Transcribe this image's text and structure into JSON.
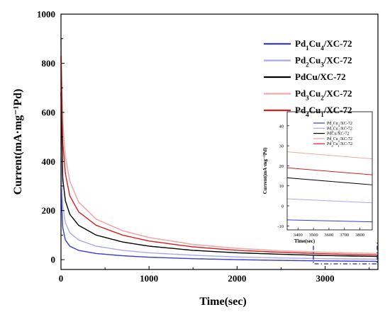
{
  "chart_data": {
    "type": "line",
    "xlabel": "Time(sec)",
    "ylabel": "Current(mA·mg⁻¹Pd)",
    "xlim": [
      0,
      3600
    ],
    "ylim": [
      -40,
      1000
    ],
    "xticks": [
      0,
      1000,
      2000,
      3000
    ],
    "yticks": [
      0,
      200,
      400,
      600,
      800,
      1000
    ],
    "legend": "top-right",
    "grid": false,
    "series": [
      {
        "name": "Pd1Cu4/XC-72",
        "sub": [
          "Pd",
          "1",
          "Cu",
          "4",
          "/XC-72"
        ],
        "color": "#3a3ae0",
        "x": [
          0,
          20,
          50,
          100,
          200,
          400,
          700,
          1000,
          1500,
          2000,
          2500,
          3000,
          3300,
          3600
        ],
        "y": [
          290,
          130,
          80,
          55,
          38,
          25,
          16,
          10,
          4,
          0,
          -3,
          -5,
          -6,
          -7
        ]
      },
      {
        "name": "Pd2Cu3/XC-72",
        "sub": [
          "Pd",
          "2",
          "Cu",
          "3",
          "/XC-72"
        ],
        "color": "#a9a9f2",
        "x": [
          0,
          20,
          50,
          100,
          200,
          400,
          700,
          1000,
          1500,
          2000,
          2500,
          3000,
          3300,
          3600
        ],
        "y": [
          420,
          220,
          150,
          110,
          80,
          55,
          38,
          28,
          18,
          11,
          7,
          4,
          3,
          2
        ]
      },
      {
        "name": "PdCu/XC-72",
        "sub": [
          "PdCu/XC-72",
          "",
          "",
          "",
          ""
        ],
        "color": "#000000",
        "x": [
          0,
          20,
          50,
          100,
          200,
          400,
          700,
          1000,
          1500,
          2000,
          2500,
          3000,
          3300,
          3600
        ],
        "y": [
          680,
          330,
          240,
          185,
          140,
          100,
          72,
          55,
          38,
          28,
          22,
          17,
          15,
          13
        ]
      },
      {
        "name": "Pd3Cu2/XC-72",
        "sub": [
          "Pd",
          "3",
          "Cu",
          "2",
          "/XC-72"
        ],
        "color": "#f0a8a8",
        "x": [
          0,
          20,
          50,
          100,
          200,
          400,
          700,
          1000,
          1500,
          2000,
          2500,
          3000,
          3300,
          3600
        ],
        "y": [
          900,
          560,
          420,
          320,
          235,
          165,
          118,
          90,
          62,
          46,
          36,
          30,
          27,
          25
        ]
      },
      {
        "name": "Pd4Cu1/XC-72",
        "sub": [
          "Pd",
          "4",
          "Cu",
          "1",
          "/XC-72"
        ],
        "color": "#d42020",
        "x": [
          0,
          20,
          50,
          100,
          200,
          400,
          700,
          1000,
          1500,
          2000,
          2500,
          3000,
          3300,
          3600
        ],
        "y": [
          830,
          480,
          350,
          260,
          195,
          140,
          100,
          76,
          52,
          38,
          30,
          24,
          21,
          19
        ]
      }
    ],
    "inset": {
      "xlabel": "Time(sec)",
      "ylabel": "Current(mA·mg⁻¹Pd)",
      "xlim": [
        3330,
        3880
      ],
      "ylim": [
        -12,
        47
      ],
      "xticks": [
        3400,
        3500,
        3600,
        3700,
        3800
      ],
      "yticks": [
        -10,
        0,
        10,
        20,
        30,
        40
      ],
      "legend": "top-right",
      "series": [
        {
          "name": "Pd1Cu4/XC-72",
          "x": [
            3330,
            3880
          ],
          "y": [
            -7,
            -8
          ]
        },
        {
          "name": "Pd2Cu3/XC-72",
          "x": [
            3330,
            3880
          ],
          "y": [
            3.5,
            1.5
          ]
        },
        {
          "name": "PdCu/XC-72",
          "x": [
            3330,
            3880
          ],
          "y": [
            14,
            10.5
          ]
        },
        {
          "name": "Pd3Cu2/XC-72",
          "x": [
            3330,
            3880
          ],
          "y": [
            27,
            23.5
          ]
        },
        {
          "name": "Pd4Cu1/XC-72",
          "x": [
            3330,
            3880
          ],
          "y": [
            19,
            15.5
          ]
        }
      ]
    }
  }
}
